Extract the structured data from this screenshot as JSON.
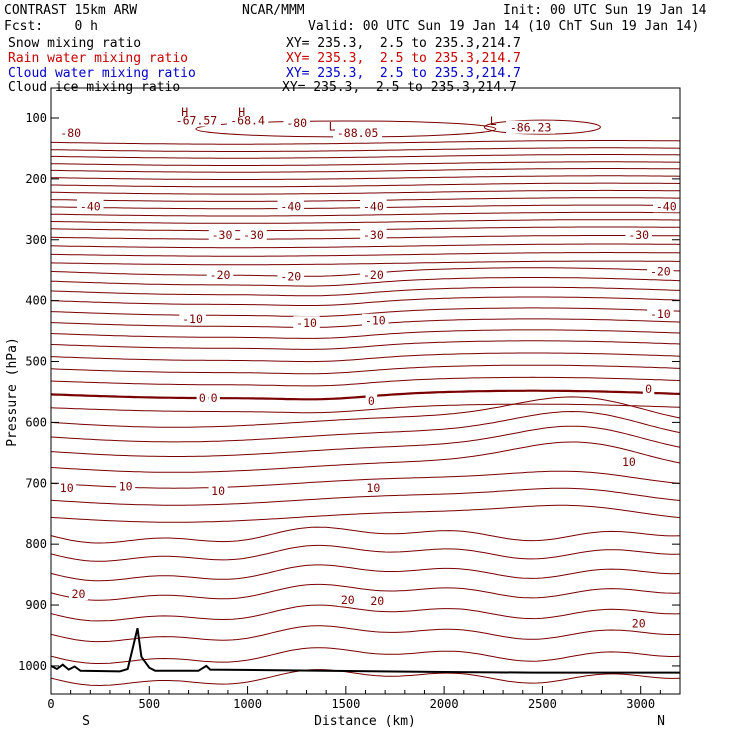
{
  "header": {
    "model": "CONTRAST 15km ARW",
    "center": "NCAR/MMM",
    "init": "Init: 00 UTC Sun 19 Jan 14",
    "fcst": "Fcst:    0 h",
    "valid": "Valid: 00 UTC Sun 19 Jan 14 (10 ChT Sun 19 Jan 14)",
    "fields": [
      {
        "name": "Snow mixing ratio",
        "xy": "XY= 235.3,  2.5 to 235.3,214.7",
        "color": "#000000"
      },
      {
        "name": "Rain water mixing ratio",
        "xy": "XY= 235.3,  2.5 to 235.3,214.7",
        "color": "#c80000"
      },
      {
        "name": "Cloud water mixing ratio",
        "xy": "XY= 235.3,  2.5 to 235.3,214.7",
        "color": "#0000c8"
      },
      {
        "name": "Cloud ice mixing ratio",
        "xy": "XY= 235.3,  2.5 to 235.3,214.7",
        "color": "#000000"
      }
    ]
  },
  "chart_data": {
    "type": "contour-cross-section",
    "xlabel": "Distance (km)",
    "ylabel": "Pressure (hPa)",
    "xlim": [
      0,
      3200
    ],
    "ylim": [
      1050,
      50
    ],
    "x_ticks": [
      "0",
      "500",
      "1000",
      "1500",
      "2000",
      "2500",
      "3000"
    ],
    "x_tick_values": [
      0,
      500,
      1000,
      1500,
      2000,
      2500,
      3000
    ],
    "y_ticks": [
      "100",
      "200",
      "300",
      "400",
      "500",
      "600",
      "700",
      "800",
      "900",
      "1000"
    ],
    "y_tick_values": [
      100,
      200,
      300,
      400,
      500,
      600,
      700,
      800,
      900,
      1000
    ],
    "endpoint_left": "S",
    "endpoint_right": "N",
    "contour_color": "#7a0000",
    "terrain_color": "#000000",
    "isotherm_labels": [
      {
        "text": "-67.57",
        "x": 740,
        "p": 104
      },
      {
        "text": "-68.4",
        "x": 1000,
        "p": 104
      },
      {
        "text": "-80",
        "x": 1250,
        "p": 108
      },
      {
        "text": "-80",
        "x": 100,
        "p": 125
      },
      {
        "text": "-88.05",
        "x": 1560,
        "p": 125
      },
      {
        "text": "-86.23",
        "x": 2440,
        "p": 116
      },
      {
        "text": "-40",
        "x": 200,
        "p": 245
      },
      {
        "text": "-40",
        "x": 1220,
        "p": 245
      },
      {
        "text": "-40",
        "x": 1640,
        "p": 245
      },
      {
        "text": "-40",
        "x": 3130,
        "p": 245
      },
      {
        "text": "-30",
        "x": 870,
        "p": 292
      },
      {
        "text": "-30",
        "x": 1030,
        "p": 292
      },
      {
        "text": "-30",
        "x": 1640,
        "p": 292
      },
      {
        "text": "-30",
        "x": 2990,
        "p": 292
      },
      {
        "text": "-20",
        "x": 860,
        "p": 358
      },
      {
        "text": "-20",
        "x": 1220,
        "p": 360
      },
      {
        "text": "-20",
        "x": 1640,
        "p": 358
      },
      {
        "text": "-20",
        "x": 3100,
        "p": 352
      },
      {
        "text": "-10",
        "x": 720,
        "p": 430
      },
      {
        "text": "-10",
        "x": 1300,
        "p": 437
      },
      {
        "text": "-10",
        "x": 1650,
        "p": 433
      },
      {
        "text": "-10",
        "x": 3100,
        "p": 422
      },
      {
        "text": "0",
        "x": 770,
        "p": 560
      },
      {
        "text": "0",
        "x": 830,
        "p": 560
      },
      {
        "text": "0",
        "x": 1630,
        "p": 565
      },
      {
        "text": "0",
        "x": 3040,
        "p": 545
      },
      {
        "text": "10",
        "x": 80,
        "p": 708
      },
      {
        "text": "10",
        "x": 380,
        "p": 705
      },
      {
        "text": "10",
        "x": 850,
        "p": 713
      },
      {
        "text": "10",
        "x": 1640,
        "p": 708
      },
      {
        "text": "10",
        "x": 2940,
        "p": 665
      },
      {
        "text": "20",
        "x": 140,
        "p": 882
      },
      {
        "text": "20",
        "x": 1510,
        "p": 892
      },
      {
        "text": "20",
        "x": 1660,
        "p": 893
      },
      {
        "text": "20",
        "x": 2990,
        "p": 930
      }
    ],
    "low_high_markers": [
      {
        "text": "H",
        "x": 680,
        "p": 90
      },
      {
        "text": "H",
        "x": 970,
        "p": 90
      },
      {
        "text": "L",
        "x": 1430,
        "p": 114
      },
      {
        "text": "L",
        "x": 2250,
        "p": 105
      }
    ]
  }
}
